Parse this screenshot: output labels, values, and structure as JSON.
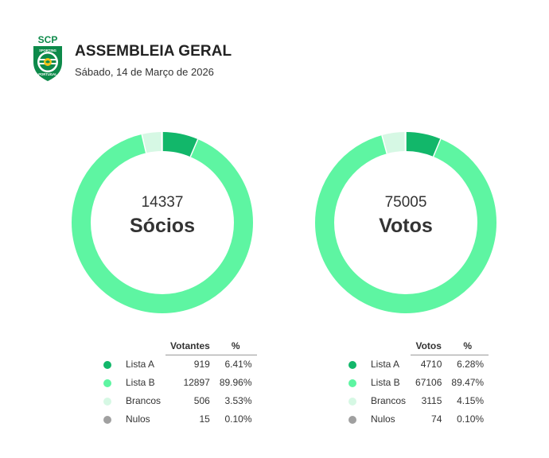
{
  "header": {
    "title": "ASSEMBLEIA GERAL",
    "subtitle": "Sábado, 14 de Março de 2026",
    "logo": {
      "top_text": "SCP",
      "ring_text_top": "SPORTING",
      "ring_text_bottom": "PORTUGAL"
    }
  },
  "colors": {
    "lista_a": "#12b76a",
    "lista_b": "#5ef5a2",
    "brancos": "#d6f8e4",
    "nulos": "#a0a0a0",
    "logo_green": "#0d8a4a"
  },
  "chart_data": [
    {
      "type": "pie",
      "variant": "donut",
      "center_value": "14337",
      "center_label": "Sócios",
      "value_header": "Votantes",
      "percent_header": "%",
      "categories": [
        "Lista A",
        "Lista B",
        "Brancos",
        "Nulos"
      ],
      "values": [
        919,
        12897,
        506,
        15
      ],
      "values_text": [
        "919",
        "12897",
        "506",
        "15"
      ],
      "percent_text": [
        "6.41%",
        "89.96%",
        "3.53%",
        "0.10%"
      ]
    },
    {
      "type": "pie",
      "variant": "donut",
      "center_value": "75005",
      "center_label": "Votos",
      "value_header": "Votos",
      "percent_header": "%",
      "categories": [
        "Lista A",
        "Lista B",
        "Brancos",
        "Nulos"
      ],
      "values": [
        4710,
        67106,
        3115,
        74
      ],
      "values_text": [
        "4710",
        "67106",
        "3115",
        "74"
      ],
      "percent_text": [
        "6.28%",
        "89.47%",
        "4.15%",
        "0.10%"
      ]
    }
  ]
}
